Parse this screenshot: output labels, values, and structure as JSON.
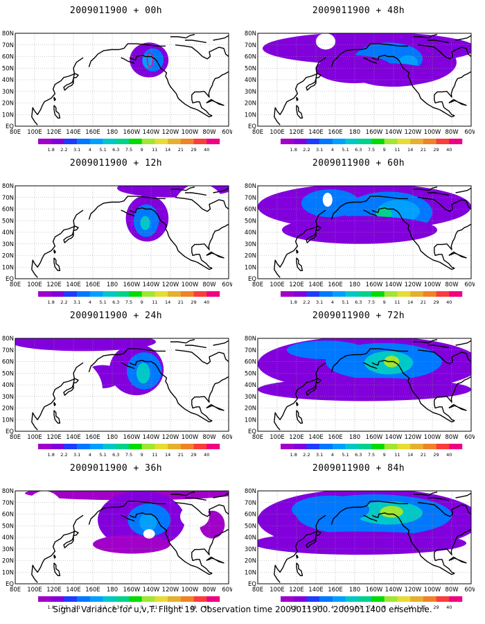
{
  "panels": [
    {
      "title": "2009011900 + 00h",
      "lead": 0
    },
    {
      "title": "2009011900 + 48h",
      "lead": 48
    },
    {
      "title": "2009011900 + 12h",
      "lead": 12
    },
    {
      "title": "2009011900 + 60h",
      "lead": 60
    },
    {
      "title": "2009011900 + 24h",
      "lead": 24
    },
    {
      "title": "2009011900 + 72h",
      "lead": 72
    },
    {
      "title": "2009011900 + 36h",
      "lead": 36
    },
    {
      "title": "2009011900 + 84h",
      "lead": 84
    }
  ],
  "map": {
    "lat_labels": [
      "80N",
      "70N",
      "60N",
      "50N",
      "40N",
      "30N",
      "20N",
      "10N",
      "EQ"
    ],
    "lon_labels": [
      "80E",
      "100E",
      "120E",
      "140E",
      "160E",
      "180",
      "160W",
      "140W",
      "120W",
      "100W",
      "80W",
      "60W"
    ]
  },
  "colorbar": {
    "levels": [
      "1.8",
      "2.2",
      "3.1",
      "4",
      "5.1",
      "6.3",
      "7.5",
      "9",
      "11",
      "14",
      "21",
      "29",
      "40"
    ],
    "colors": [
      "#a000c8",
      "#8200dc",
      "#1e3cff",
      "#0078ff",
      "#00a0ff",
      "#00c8c8",
      "#00d28c",
      "#00dc00",
      "#a0e632",
      "#e6dc32",
      "#e6af2d",
      "#f08228",
      "#fa3c3c",
      "#f00082"
    ]
  },
  "caption": "Signal Variance for u,v,T. Flight 19. Observation time 2009011900. 2009011400 ensemble."
}
